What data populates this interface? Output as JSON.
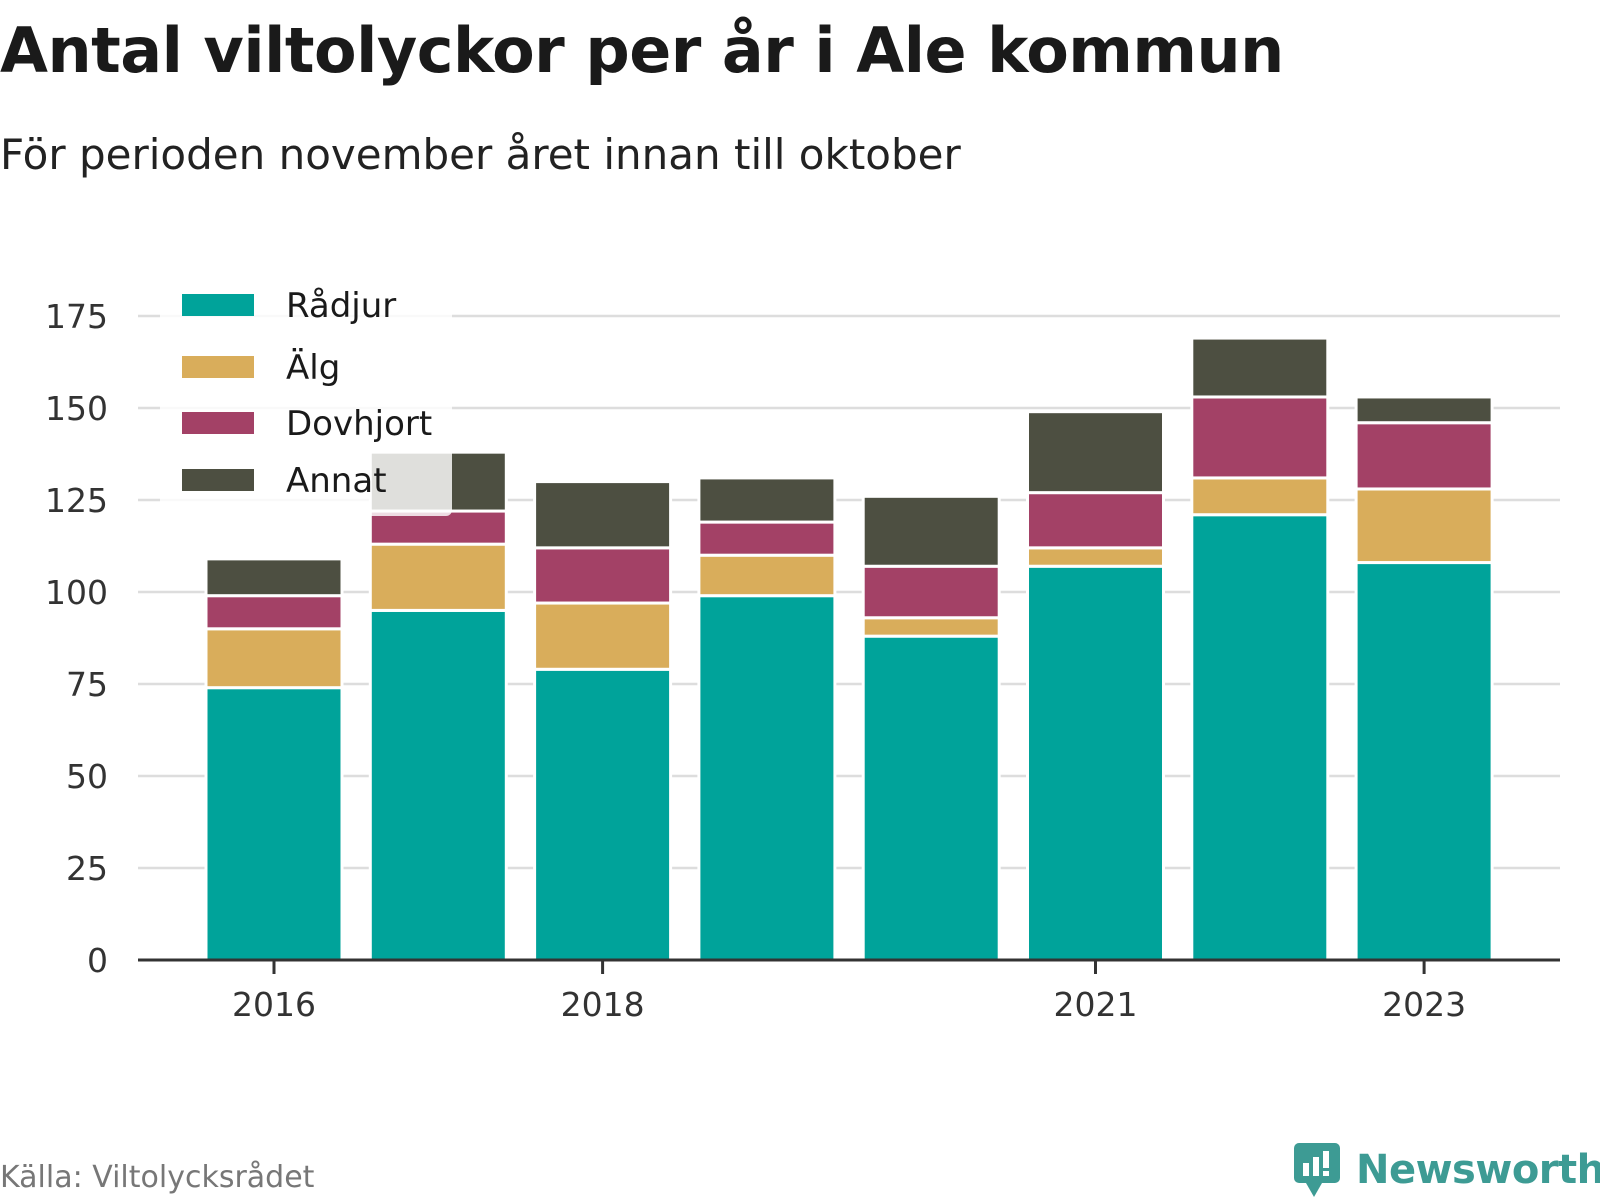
{
  "title": "Antal viltolyckor per år i Ale kommun",
  "subtitle": "För perioden november året innan till oktober",
  "source": "Källa: Viltolycksrådet",
  "brand": "Newsworthy",
  "chart_data": {
    "type": "bar",
    "stacked": true,
    "categories": [
      2016,
      2017,
      2018,
      2019,
      2020,
      2021,
      2022,
      2023
    ],
    "x_tick_labels": [
      "2016",
      "2018",
      "2021",
      "2023"
    ],
    "ylim": [
      0,
      175
    ],
    "y_ticks": [
      0,
      25,
      50,
      75,
      100,
      125,
      150,
      175
    ],
    "grid": true,
    "legend_position": "top-left",
    "series": [
      {
        "name": "Rådjur",
        "color": "#00a39a",
        "values": [
          74,
          95,
          79,
          99,
          88,
          107,
          121,
          108
        ]
      },
      {
        "name": "Älg",
        "color": "#d9ad5b",
        "values": [
          16,
          18,
          18,
          11,
          5,
          5,
          10,
          20
        ]
      },
      {
        "name": "Dovhjort",
        "color": "#a34166",
        "values": [
          9,
          9,
          15,
          9,
          14,
          15,
          22,
          18
        ]
      },
      {
        "name": "Annat",
        "color": "#4d4f41",
        "values": [
          10,
          16,
          18,
          12,
          19,
          22,
          16,
          7
        ]
      }
    ]
  }
}
